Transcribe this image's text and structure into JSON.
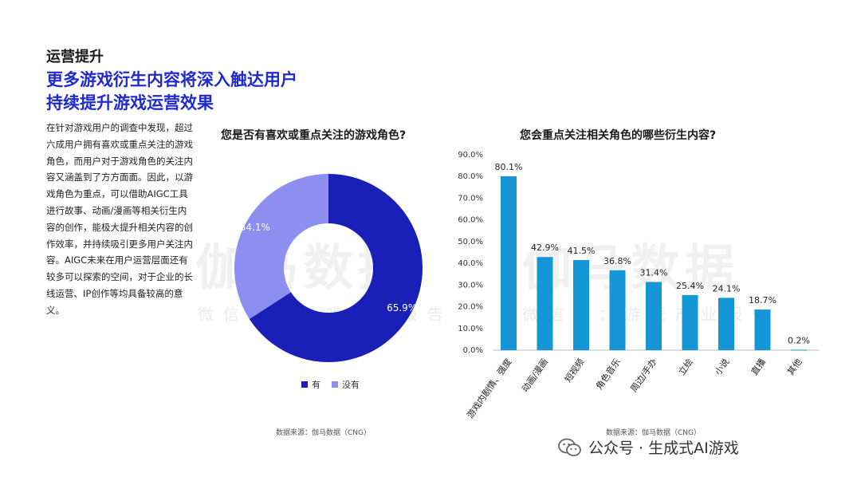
{
  "header": {
    "section": "运营提升",
    "headline_line1": "更多游戏衍生内容将深入触达用户",
    "headline_line2": "持续提升游戏运营效果"
  },
  "body": {
    "paragraph": "在针对游戏用户的调查中发现，超过六成用户拥有喜欢或重点关注的游戏角色，而用户对于游戏角色的关注内容又涵盖到了方方面面。因此，以游戏角色为重点，可以借助AIGC工具进行故事、动画/漫画等相关衍生内容的创作，能极大提升相关内容的创作效率，并持续吸引更多用户关注内容。AIGC未来在用户运营层面还有较多可以探索的空间，对于企业的长线运营、IP创作等均具备较高的意义。"
  },
  "watermark": {
    "left_main": "伽马数据",
    "left_sub": "微信号：游戏产业报告",
    "right_main": "伽马数据",
    "right_sub": "微信号：游戏产业报告"
  },
  "colors": {
    "primary_blue": "#1a1fb8",
    "light_blue": "#8c8ff0",
    "bar_blue": "#1596d6",
    "headline_blue": "#1f2ad0"
  },
  "footer": {
    "icon": "wechat-icon",
    "text": "公众号 · 生成式AI游戏"
  },
  "chart_data": [
    {
      "type": "pie",
      "title": "您是否有喜欢或重点关注的游戏角色?",
      "donut": true,
      "categories": [
        "有",
        "没有"
      ],
      "values": [
        65.9,
        34.1
      ],
      "labels": [
        "65.9%",
        "34.1%"
      ],
      "colors": [
        "#1a1fb8",
        "#8c8ff0"
      ],
      "legend": "bottom",
      "source": "数据来源：伽马数据（CNG）"
    },
    {
      "type": "bar",
      "title": "您会重点关注相关角色的哪些衍生内容?",
      "categories": [
        "游戏内剧情、强度",
        "动画/漫画",
        "短视频",
        "角色音乐",
        "周边/手办",
        "立绘",
        "小说",
        "直播",
        "其他"
      ],
      "values": [
        80.1,
        42.9,
        41.5,
        36.8,
        31.4,
        25.4,
        24.1,
        18.7,
        0.2
      ],
      "value_labels": [
        "80.1%",
        "42.9%",
        "41.5%",
        "36.8%",
        "31.4%",
        "25.4%",
        "24.1%",
        "18.7%",
        "0.2%"
      ],
      "y_ticks": [
        "0.0%",
        "10.0%",
        "20.0%",
        "30.0%",
        "40.0%",
        "50.0%",
        "60.0%",
        "70.0%",
        "80.0%",
        "90.0%"
      ],
      "ylim": [
        0,
        90
      ],
      "grid": false,
      "color": "#1596d6",
      "source": "数据来源：伽马数据（CNG）"
    }
  ]
}
